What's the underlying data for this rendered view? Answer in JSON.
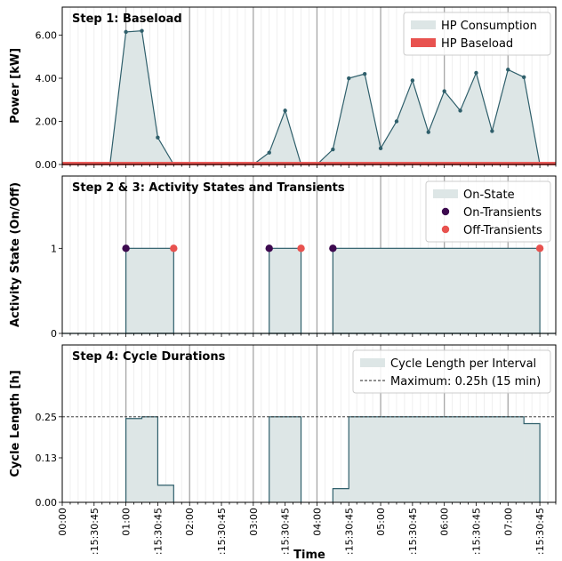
{
  "figure": {
    "xlabel": "Time",
    "colors": {
      "fill": "#dde6e6",
      "line": "#2f5f6b",
      "baseload": "#e8524f",
      "on_marker": "#3d0a4f",
      "off_marker": "#e8524f",
      "grid_major": "#a6a6a6",
      "grid_minor": "#ebebeb"
    }
  },
  "chart_data": [
    {
      "type": "area",
      "title": "Step 1: Baseload",
      "ylabel": "Power [kW]",
      "ylim": [
        0,
        7.3
      ],
      "yticks": [
        0,
        2,
        4,
        6
      ],
      "ytick_labels": [
        "0.00",
        "2.00",
        "4.00",
        "6.00"
      ],
      "xlim": [
        0,
        7.75
      ],
      "xticks": [
        0,
        0.5,
        1,
        1.5,
        2,
        2.5,
        3,
        3.5,
        4,
        4.5,
        5,
        5.5,
        6,
        6.5,
        7,
        7.5
      ],
      "xtick_labels": [
        "00:00",
        ":15:30:45",
        "01:00",
        ":15:30:45",
        "02:00",
        ":15:30:45",
        "03:00",
        ":15:30:45",
        "04:00",
        ":15:30:45",
        "05:00",
        ":15:30:45",
        "06:00",
        ":15:30:45",
        "07:00",
        ":15:30:45"
      ],
      "series": [
        {
          "name": "HP Consumption",
          "kind": "area",
          "x": [
            0,
            0.5,
            0.75,
            1.0,
            1.25,
            1.5,
            1.75,
            2.0,
            2.25,
            2.5,
            2.75,
            3.0,
            3.25,
            3.5,
            3.75,
            4.0,
            4.25,
            4.5,
            4.75,
            5.0,
            5.25,
            5.5,
            5.75,
            6.0,
            6.25,
            6.5,
            6.75,
            7.0,
            7.25,
            7.5,
            7.75
          ],
          "y": [
            0,
            0,
            0,
            6.15,
            6.2,
            1.25,
            0,
            0,
            0,
            0,
            0,
            0,
            0.55,
            2.5,
            0,
            0,
            0.7,
            4.0,
            4.2,
            0.75,
            2.0,
            3.9,
            1.5,
            3.4,
            2.5,
            4.25,
            1.55,
            4.4,
            4.05,
            0,
            0
          ]
        },
        {
          "name": "HP Baseload",
          "kind": "band",
          "x": [
            0,
            7.75
          ],
          "y": [
            0.12,
            0.12
          ]
        }
      ],
      "legend": {
        "placement": "top-right",
        "entries": [
          "HP Consumption",
          "HP Baseload"
        ]
      }
    },
    {
      "type": "area",
      "title": "Step 2 & 3: Activity States and Transients",
      "ylabel": "Activity State (On/Off)",
      "ylim": [
        0,
        1.85
      ],
      "yticks": [
        0,
        1
      ],
      "ytick_labels": [
        "0",
        "1"
      ],
      "xlim": [
        0,
        7.75
      ],
      "xticks": [
        0,
        0.5,
        1,
        1.5,
        2,
        2.5,
        3,
        3.5,
        4,
        4.5,
        5,
        5.5,
        6,
        6.5,
        7,
        7.5
      ],
      "intervals": [
        [
          1.0,
          1.75
        ],
        [
          3.25,
          3.75
        ],
        [
          4.25,
          7.5
        ]
      ],
      "series": [
        {
          "name": "On-State",
          "kind": "step-area"
        },
        {
          "name": "On-Transients",
          "kind": "scatter",
          "x": [
            1.0,
            3.25,
            4.25
          ],
          "y": [
            1,
            1,
            1
          ]
        },
        {
          "name": "Off-Transients",
          "kind": "scatter",
          "x": [
            1.75,
            3.75,
            7.5
          ],
          "y": [
            1,
            1,
            1
          ]
        }
      ],
      "legend": {
        "placement": "top-right",
        "entries": [
          "On-State",
          "On-Transients",
          "Off-Transients"
        ]
      }
    },
    {
      "type": "area",
      "title": "Step 4: Cycle Durations",
      "ylabel": "Cycle Length [h]",
      "ylim": [
        0,
        0.46
      ],
      "yticks": [
        0,
        0.13,
        0.25
      ],
      "ytick_labels": [
        "0.00",
        "0.13",
        "0.25"
      ],
      "xlim": [
        0,
        7.75
      ],
      "xticks": [
        0,
        0.5,
        1,
        1.5,
        2,
        2.5,
        3,
        3.5,
        4,
        4.5,
        5,
        5.5,
        6,
        6.5,
        7,
        7.5
      ],
      "xtick_labels": [
        "00:00",
        ":15:30:45",
        "01:00",
        ":15:30:45",
        "02:00",
        ":15:30:45",
        "03:00",
        ":15:30:45",
        "04:00",
        ":15:30:45",
        "05:00",
        ":15:30:45",
        "06:00",
        ":15:30:45",
        "07:00",
        ":15:30:45"
      ],
      "segments": [
        [
          1.0,
          1.25,
          0.245
        ],
        [
          1.25,
          1.5,
          0.25
        ],
        [
          1.5,
          1.75,
          0.05
        ],
        [
          3.25,
          3.75,
          0.25
        ],
        [
          4.25,
          4.5,
          0.04
        ],
        [
          4.5,
          7.25,
          0.25
        ],
        [
          7.25,
          7.5,
          0.23
        ]
      ],
      "series": [
        {
          "name": "Cycle Length per Interval",
          "kind": "step-area"
        },
        {
          "name": "Maximum: 0.25h (15 min)",
          "kind": "hline",
          "y": 0.25
        }
      ],
      "legend": {
        "placement": "top-right",
        "entries": [
          "Cycle Length per Interval",
          "Maximum: 0.25h (15 min)"
        ]
      }
    }
  ]
}
